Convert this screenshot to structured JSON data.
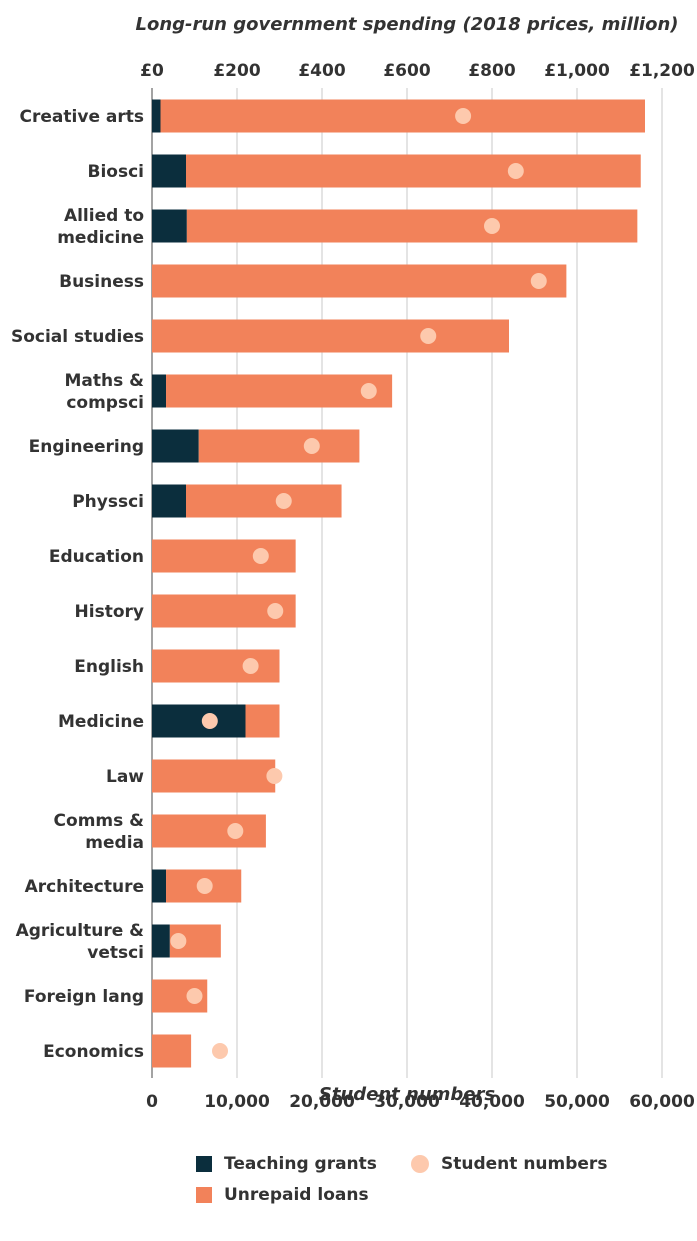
{
  "chart_data": {
    "type": "bar",
    "orientation": "horizontal",
    "stacked": true,
    "title": "Long-run government spending (2018 prices, million)",
    "xlabel": "Student numbers",
    "top_axis": {
      "ticks": [
        "£0",
        "£200",
        "£400",
        "£600",
        "£800",
        "£1,000",
        "£1,200"
      ],
      "values": [
        0,
        200,
        400,
        600,
        800,
        1000,
        1200
      ],
      "range": [
        0,
        1200
      ]
    },
    "bottom_axis": {
      "ticks": [
        "0",
        "10,000",
        "20,000",
        "30,000",
        "40,000",
        "50,000",
        "60,000"
      ],
      "values": [
        0,
        10000,
        20000,
        30000,
        40000,
        50000,
        60000
      ],
      "range": [
        0,
        60000
      ]
    },
    "grid": true,
    "categories": [
      [
        "Creative arts"
      ],
      [
        "Biosci"
      ],
      [
        "Allied to",
        "medicine"
      ],
      [
        "Business"
      ],
      [
        "Social studies"
      ],
      [
        "Maths &",
        "compsci"
      ],
      [
        "Engineering"
      ],
      [
        "Physsci"
      ],
      [
        "Education"
      ],
      [
        "History"
      ],
      [
        "English"
      ],
      [
        "Medicine"
      ],
      [
        "Law"
      ],
      [
        "Comms &",
        "media"
      ],
      [
        "Architecture"
      ],
      [
        "Agriculture &",
        "vetsci"
      ],
      [
        "Foreign lang"
      ],
      [
        "Economics"
      ]
    ],
    "series": [
      {
        "name": "Teaching grants",
        "color": "#0b2e3d",
        "axis": "top",
        "values": [
          20,
          80,
          82,
          0,
          0,
          33,
          110,
          80,
          0,
          0,
          0,
          220,
          0,
          0,
          33,
          42,
          0,
          0
        ]
      },
      {
        "name": "Unrepaid loans",
        "color": "#f2825a",
        "axis": "top",
        "values": [
          1140,
          1070,
          1060,
          975,
          840,
          532,
          378,
          366,
          338,
          338,
          300,
          80,
          290,
          268,
          177,
          120,
          130,
          92
        ]
      },
      {
        "name": "Student numbers",
        "color": "#fdc9ad",
        "axis": "bottom",
        "marker": "dot",
        "values": [
          36600,
          42800,
          40000,
          45500,
          32500,
          25500,
          18800,
          15500,
          12800,
          14500,
          11600,
          6800,
          14400,
          9800,
          6200,
          3100,
          5000,
          8000
        ]
      }
    ],
    "legend": {
      "position": "bottom",
      "items": [
        "Teaching grants",
        "Student numbers",
        "Unrepaid loans"
      ]
    }
  }
}
